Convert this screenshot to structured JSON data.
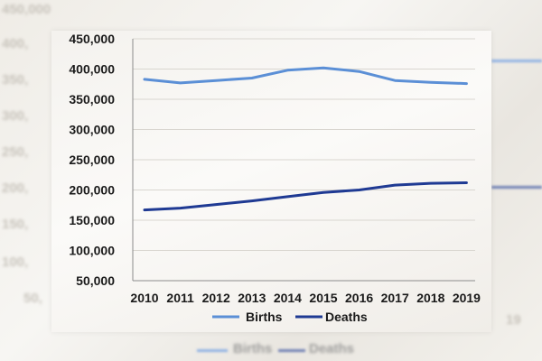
{
  "colors": {
    "births": "#5b8fd6",
    "deaths": "#1f3a93",
    "grid": "#d9d6d0",
    "axis": "#8c8c8c"
  },
  "chart_data": {
    "type": "line",
    "title": "",
    "xlabel": "",
    "ylabel": "",
    "x": [
      "2010",
      "2011",
      "2012",
      "2013",
      "2014",
      "2015",
      "2016",
      "2017",
      "2018",
      "2019"
    ],
    "ylim": [
      50000,
      450000
    ],
    "yticks": [
      "50,000",
      "100,000",
      "150,000",
      "200,000",
      "250,000",
      "300,000",
      "350,000",
      "400,000",
      "450,000"
    ],
    "grid": true,
    "legend": "bottom",
    "series": [
      {
        "name": "Births",
        "values": [
          383000,
          377000,
          381000,
          385000,
          398000,
          402000,
          396000,
          381000,
          378000,
          376000
        ]
      },
      {
        "name": "Deaths",
        "values": [
          167000,
          170000,
          176000,
          182000,
          189000,
          196000,
          200000,
          208000,
          211000,
          212000
        ]
      }
    ]
  },
  "backdrop_labels": {
    "y_ticks": [
      "450,000",
      "400,",
      "350,",
      "300,",
      "250,",
      "200,",
      "150,",
      "100,",
      "50,"
    ],
    "x_tail": "19",
    "legend_births": "Births",
    "legend_deaths": "Deaths"
  }
}
